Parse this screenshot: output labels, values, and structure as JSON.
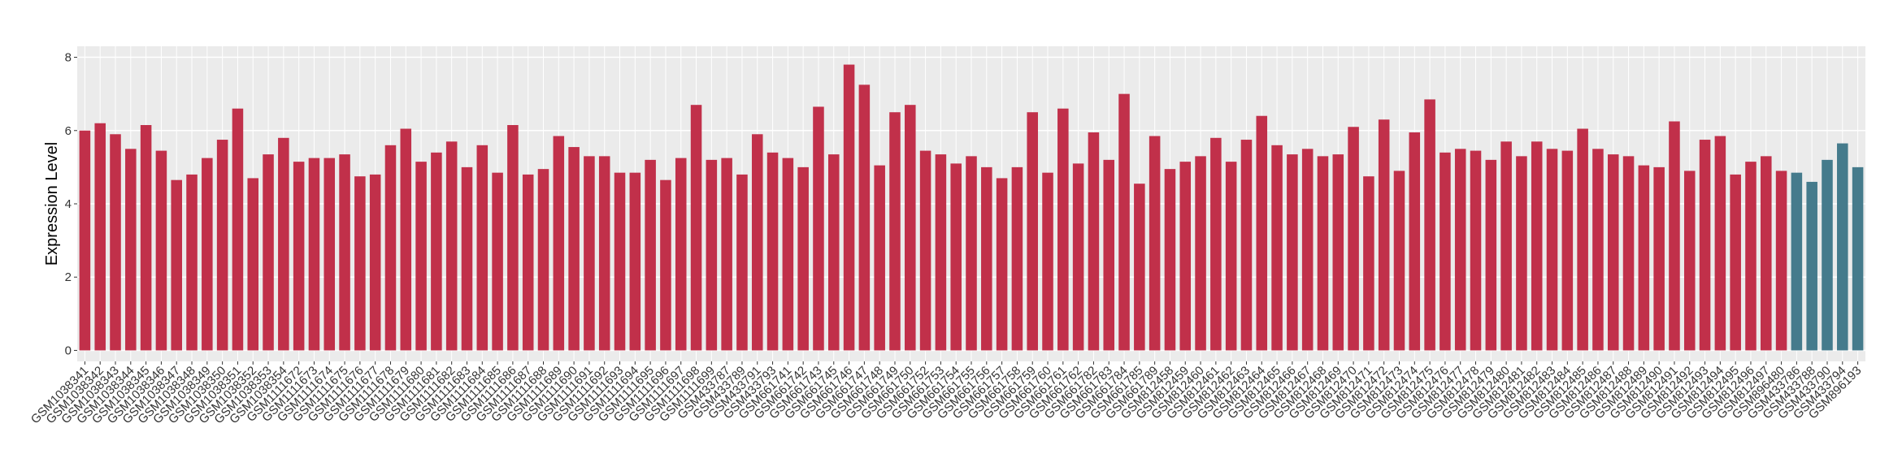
{
  "chart_data": {
    "type": "bar",
    "y_label": "Expression Level",
    "categories": [
      "GSM1038341",
      "GSM1038342",
      "GSM1038343",
      "GSM1038344",
      "GSM1038345",
      "GSM1038346",
      "GSM1038347",
      "GSM1038348",
      "GSM1038349",
      "GSM1038350",
      "GSM1038351",
      "GSM1038352",
      "GSM1038353",
      "GSM1038354",
      "GSM1111672",
      "GSM1111673",
      "GSM1111674",
      "GSM1111675",
      "GSM1111676",
      "GSM1111677",
      "GSM1111678",
      "GSM1111679",
      "GSM1111680",
      "GSM1111681",
      "GSM1111682",
      "GSM1111683",
      "GSM1111684",
      "GSM1111685",
      "GSM1111686",
      "GSM1111687",
      "GSM1111688",
      "GSM1111689",
      "GSM1111690",
      "GSM1111691",
      "GSM1111692",
      "GSM1111693",
      "GSM1111694",
      "GSM1111695",
      "GSM1111696",
      "GSM1111697",
      "GSM1111698",
      "GSM1111699",
      "GSM433787",
      "GSM433789",
      "GSM433791",
      "GSM433793",
      "GSM661741",
      "GSM661742",
      "GSM661743",
      "GSM661745",
      "GSM661746",
      "GSM661747",
      "GSM661748",
      "GSM661749",
      "GSM661750",
      "GSM661752",
      "GSM661753",
      "GSM661754",
      "GSM661755",
      "GSM661756",
      "GSM661757",
      "GSM661758",
      "GSM661759",
      "GSM661760",
      "GSM661761",
      "GSM661762",
      "GSM661782",
      "GSM661783",
      "GSM661784",
      "GSM661785",
      "GSM661789",
      "GSM812458",
      "GSM812459",
      "GSM812460",
      "GSM812461",
      "GSM812462",
      "GSM812463",
      "GSM812464",
      "GSM812465",
      "GSM812466",
      "GSM812467",
      "GSM812468",
      "GSM812469",
      "GSM812470",
      "GSM812471",
      "GSM812472",
      "GSM812473",
      "GSM812474",
      "GSM812475",
      "GSM812476",
      "GSM812477",
      "GSM812478",
      "GSM812479",
      "GSM812480",
      "GSM812481",
      "GSM812482",
      "GSM812483",
      "GSM812484",
      "GSM812485",
      "GSM812486",
      "GSM812487",
      "GSM812488",
      "GSM812489",
      "GSM812490",
      "GSM812491",
      "GSM812492",
      "GSM812493",
      "GSM812494",
      "GSM812495",
      "GSM812496",
      "GSM812497",
      "GSM896480",
      "GSM433786",
      "GSM433788",
      "GSM433790",
      "GSM433794",
      "GSM896193"
    ],
    "values": [
      6.0,
      6.2,
      5.9,
      5.5,
      6.15,
      5.45,
      4.65,
      4.8,
      5.25,
      5.75,
      6.6,
      4.7,
      5.35,
      5.8,
      5.15,
      5.25,
      5.25,
      5.35,
      4.75,
      4.8,
      5.6,
      6.05,
      5.15,
      5.4,
      5.7,
      5.0,
      5.6,
      4.85,
      6.15,
      4.8,
      4.95,
      5.85,
      5.55,
      5.3,
      5.3,
      4.85,
      4.85,
      5.2,
      4.65,
      5.25,
      6.7,
      5.2,
      5.25,
      4.8,
      5.9,
      5.4,
      5.25,
      5.0,
      6.65,
      5.35,
      7.8,
      7.25,
      5.05,
      6.5,
      6.7,
      5.45,
      5.35,
      5.1,
      5.3,
      5.0,
      4.7,
      5.0,
      6.5,
      4.85,
      6.6,
      5.1,
      5.95,
      5.2,
      7.0,
      4.55,
      5.85,
      4.95,
      5.15,
      5.3,
      5.8,
      5.15,
      5.75,
      6.4,
      5.6,
      5.35,
      5.5,
      5.3,
      5.35,
      6.1,
      4.75,
      6.3,
      4.9,
      5.95,
      6.85,
      5.4,
      5.5,
      5.45,
      5.2,
      5.7,
      5.3,
      5.7,
      5.5,
      5.45,
      6.05,
      5.5,
      5.35,
      5.3,
      5.05,
      5.0,
      6.25,
      4.9,
      5.75,
      5.85,
      4.8,
      5.15,
      5.3,
      4.9,
      4.85,
      4.6,
      5.2,
      5.65,
      5.0
    ],
    "bar_colors": [
      "#c1304a",
      "#c1304a",
      "#c1304a",
      "#c1304a",
      "#c1304a",
      "#c1304a",
      "#c1304a",
      "#c1304a",
      "#c1304a",
      "#c1304a",
      "#c1304a",
      "#c1304a",
      "#c1304a",
      "#c1304a",
      "#c1304a",
      "#c1304a",
      "#c1304a",
      "#c1304a",
      "#c1304a",
      "#c1304a",
      "#c1304a",
      "#c1304a",
      "#c1304a",
      "#c1304a",
      "#c1304a",
      "#c1304a",
      "#c1304a",
      "#c1304a",
      "#c1304a",
      "#c1304a",
      "#c1304a",
      "#c1304a",
      "#c1304a",
      "#c1304a",
      "#c1304a",
      "#c1304a",
      "#c1304a",
      "#c1304a",
      "#c1304a",
      "#c1304a",
      "#c1304a",
      "#c1304a",
      "#c1304a",
      "#c1304a",
      "#c1304a",
      "#c1304a",
      "#c1304a",
      "#c1304a",
      "#c1304a",
      "#c1304a",
      "#c1304a",
      "#c1304a",
      "#c1304a",
      "#c1304a",
      "#c1304a",
      "#c1304a",
      "#c1304a",
      "#c1304a",
      "#c1304a",
      "#c1304a",
      "#c1304a",
      "#c1304a",
      "#c1304a",
      "#c1304a",
      "#c1304a",
      "#c1304a",
      "#c1304a",
      "#c1304a",
      "#c1304a",
      "#c1304a",
      "#c1304a",
      "#c1304a",
      "#c1304a",
      "#c1304a",
      "#c1304a",
      "#c1304a",
      "#c1304a",
      "#c1304a",
      "#c1304a",
      "#c1304a",
      "#c1304a",
      "#c1304a",
      "#c1304a",
      "#c1304a",
      "#c1304a",
      "#c1304a",
      "#c1304a",
      "#c1304a",
      "#c1304a",
      "#c1304a",
      "#c1304a",
      "#c1304a",
      "#c1304a",
      "#c1304a",
      "#c1304a",
      "#c1304a",
      "#c1304a",
      "#c1304a",
      "#c1304a",
      "#c1304a",
      "#c1304a",
      "#c1304a",
      "#c1304a",
      "#c1304a",
      "#c1304a",
      "#c1304a",
      "#c1304a",
      "#c1304a",
      "#c1304a",
      "#c1304a",
      "#c1304a",
      "#c1304a",
      "#457b8c",
      "#457b8c",
      "#457b8c",
      "#457b8c",
      "#457b8c"
    ],
    "ylim": [
      -0.3,
      8.3
    ],
    "yticks": [
      0,
      2,
      4,
      6,
      8
    ],
    "grid": true
  }
}
